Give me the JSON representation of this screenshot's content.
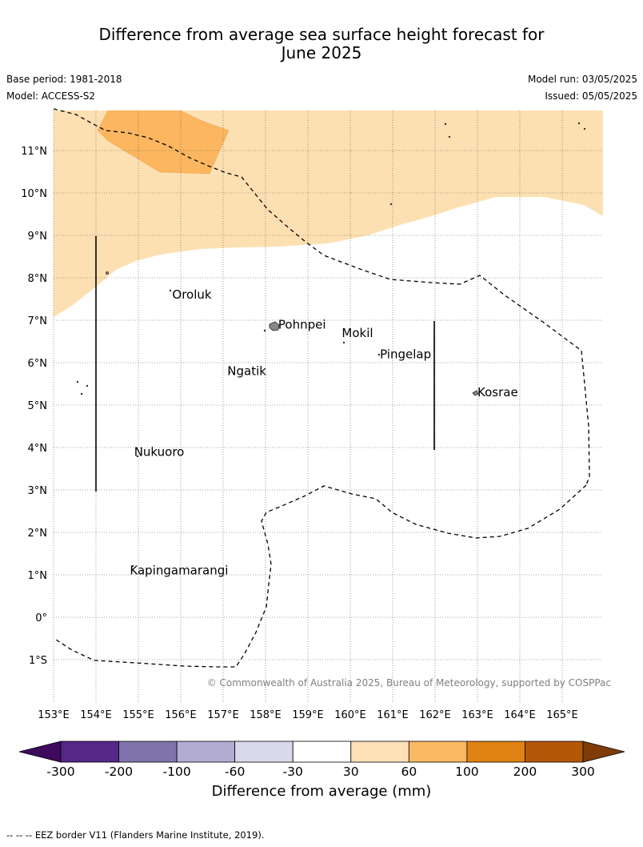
{
  "header": {
    "title_line1": "Difference from average sea surface height forecast for",
    "title_line2": "June 2025",
    "base_period": "Base period: 1981-2018",
    "model": "Model: ACCESS-S2",
    "model_run": "Model run: 03/05/2025",
    "issued": "Issued: 05/05/2025"
  },
  "map": {
    "lon_labels": [
      "153°E",
      "154°E",
      "155°E",
      "156°E",
      "157°E",
      "158°E",
      "159°E",
      "160°E",
      "161°E",
      "162°E",
      "163°E",
      "164°E",
      "165°E"
    ],
    "lat_labels": [
      "11°N",
      "10°N",
      "9°N",
      "8°N",
      "7°N",
      "6°N",
      "5°N",
      "4°N",
      "3°N",
      "2°N",
      "1°N",
      "0°",
      "1°S"
    ],
    "places": [
      {
        "name": "Oroluk",
        "lon": 155.8,
        "lat": 7.6
      },
      {
        "name": "Pohnpei",
        "lon": 158.3,
        "lat": 6.9
      },
      {
        "name": "Mokil",
        "lon": 159.8,
        "lat": 6.7
      },
      {
        "name": "Pingelap",
        "lon": 160.7,
        "lat": 6.2
      },
      {
        "name": "Ngatik",
        "lon": 157.1,
        "lat": 5.8
      },
      {
        "name": "Kosrae",
        "lon": 163.0,
        "lat": 5.3
      },
      {
        "name": "Nukuoro",
        "lon": 154.9,
        "lat": 3.9
      },
      {
        "name": "Kapingamarangi",
        "lon": 154.8,
        "lat": 1.1
      }
    ],
    "copyright": "© Commonwealth of Australia 2025, Bureau of Meteorology, supported by COSPPac",
    "colors": {
      "light_orange": "#fde0b2",
      "mid_orange": "#fbb65f",
      "land": "#888888"
    }
  },
  "colorbar": {
    "ticks": [
      "-300",
      "-200",
      "-100",
      "-60",
      "-30",
      "30",
      "60",
      "100",
      "200",
      "300"
    ],
    "colors": [
      "#3d0a5e",
      "#542788",
      "#8073ac",
      "#b2abd2",
      "#d8daeb",
      "#ffffff",
      "#fee0b6",
      "#fdb863",
      "#e08214",
      "#b35806",
      "#7f3b08"
    ],
    "label": "Difference from average (mm)"
  },
  "footer": "--  --  -- EEZ border V11 (Flanders Marine Institute, 2019)."
}
